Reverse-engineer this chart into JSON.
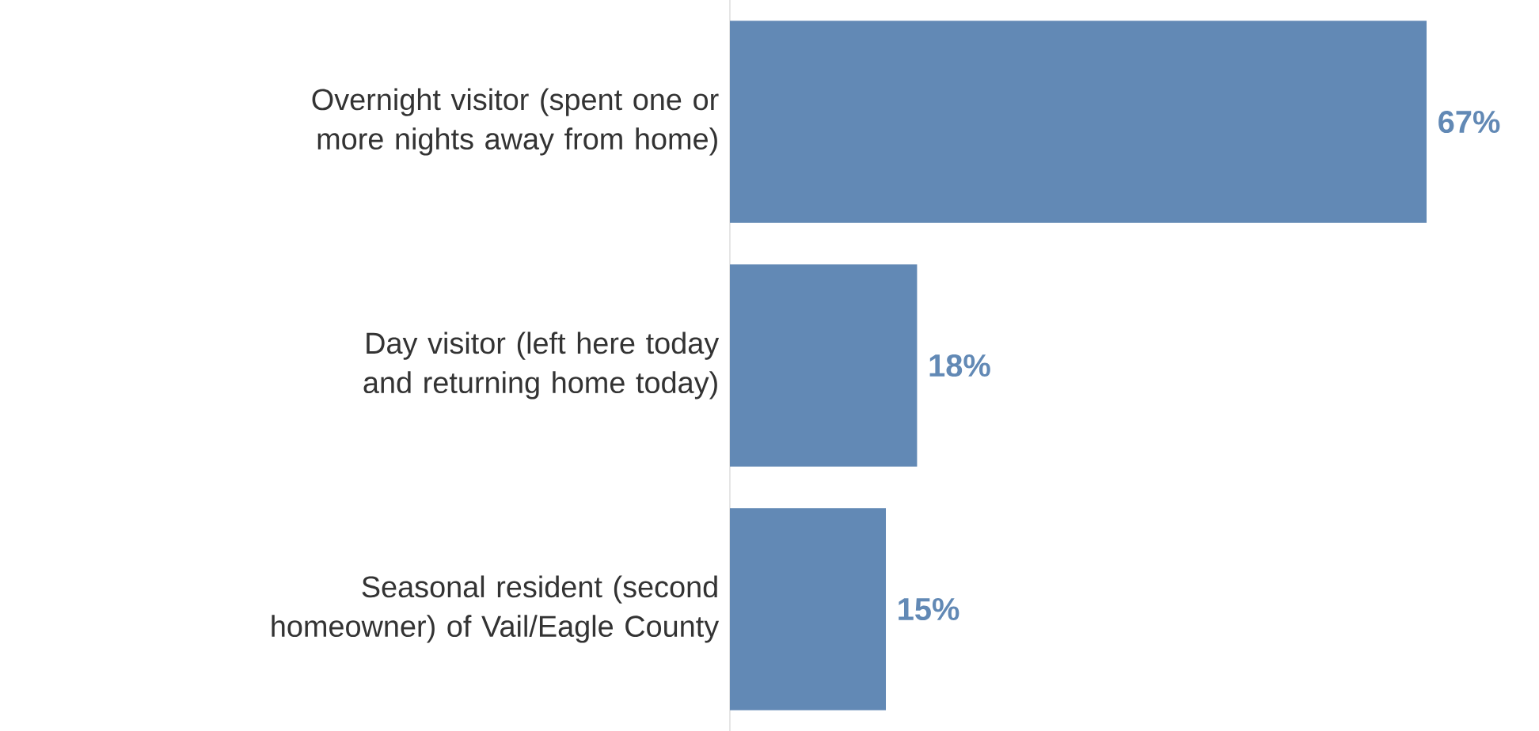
{
  "chart_data": {
    "type": "bar",
    "orientation": "horizontal",
    "categories": [
      "Overnight visitor (spent one or more nights away from home)",
      "Day visitor (left here today and returning home today)",
      "Seasonal resident (second homeowner) of Vail/Eagle County"
    ],
    "values": [
      67,
      18,
      15
    ],
    "value_labels": [
      "67%",
      "18%",
      "15%"
    ],
    "color": "#6289b5"
  }
}
